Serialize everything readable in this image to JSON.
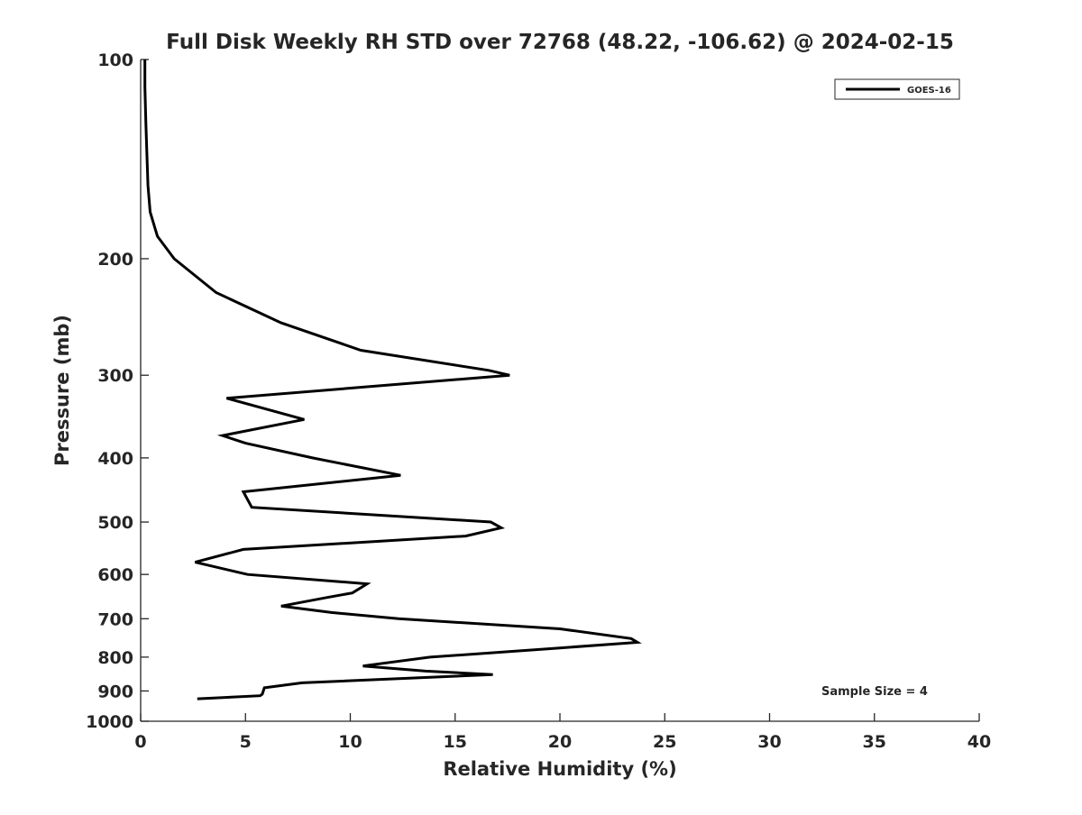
{
  "chart_data": {
    "type": "line",
    "title": "Full Disk Weekly RH STD over 72768 (48.22, -106.62) @ 2024-02-15",
    "xlabel": "Relative Humidity (%)",
    "ylabel": "Pressure (mb)",
    "xlim": [
      0,
      40
    ],
    "ylim": [
      100,
      1000
    ],
    "y_scale": "log",
    "y_reversed": true,
    "grid": false,
    "x_ticks": [
      "0",
      "5",
      "10",
      "15",
      "20",
      "25",
      "30",
      "35",
      "40"
    ],
    "y_ticks": [
      "100",
      "200",
      "300",
      "400",
      "500",
      "600",
      "700",
      "800",
      "900",
      "1000"
    ],
    "legend": {
      "position": "top-right",
      "entries": [
        "GOES-16"
      ]
    },
    "annotation": "Sample Size = 4",
    "series": [
      {
        "name": "GOES-16",
        "color": "#000000",
        "points": [
          [
            0.2,
            100
          ],
          [
            0.2,
            110
          ],
          [
            0.25,
            125
          ],
          [
            0.3,
            140
          ],
          [
            0.35,
            155
          ],
          [
            0.45,
            170
          ],
          [
            0.8,
            185
          ],
          [
            1.6,
            200
          ],
          [
            3.6,
            225
          ],
          [
            6.7,
            250
          ],
          [
            10.5,
            275
          ],
          [
            16.6,
            295
          ],
          [
            17.6,
            300
          ],
          [
            4.1,
            325
          ],
          [
            7.8,
            350
          ],
          [
            3.9,
            370
          ],
          [
            5.0,
            380
          ],
          [
            8.2,
            400
          ],
          [
            12.4,
            425
          ],
          [
            4.9,
            450
          ],
          [
            5.3,
            475
          ],
          [
            16.7,
            500
          ],
          [
            17.2,
            510
          ],
          [
            15.5,
            525
          ],
          [
            4.9,
            550
          ],
          [
            2.6,
            575
          ],
          [
            5.1,
            600
          ],
          [
            10.8,
            620
          ],
          [
            10.1,
            640
          ],
          [
            8.9,
            650
          ],
          [
            6.7,
            670
          ],
          [
            9.1,
            685
          ],
          [
            12.3,
            700
          ],
          [
            20.0,
            725
          ],
          [
            23.4,
            750
          ],
          [
            23.7,
            760
          ],
          [
            20.0,
            775
          ],
          [
            13.8,
            800
          ],
          [
            10.6,
            825
          ],
          [
            13.6,
            840
          ],
          [
            16.8,
            850
          ],
          [
            7.7,
            875
          ],
          [
            5.9,
            890
          ],
          [
            5.8,
            910
          ],
          [
            5.7,
            915
          ],
          [
            2.7,
            925
          ]
        ]
      }
    ]
  }
}
